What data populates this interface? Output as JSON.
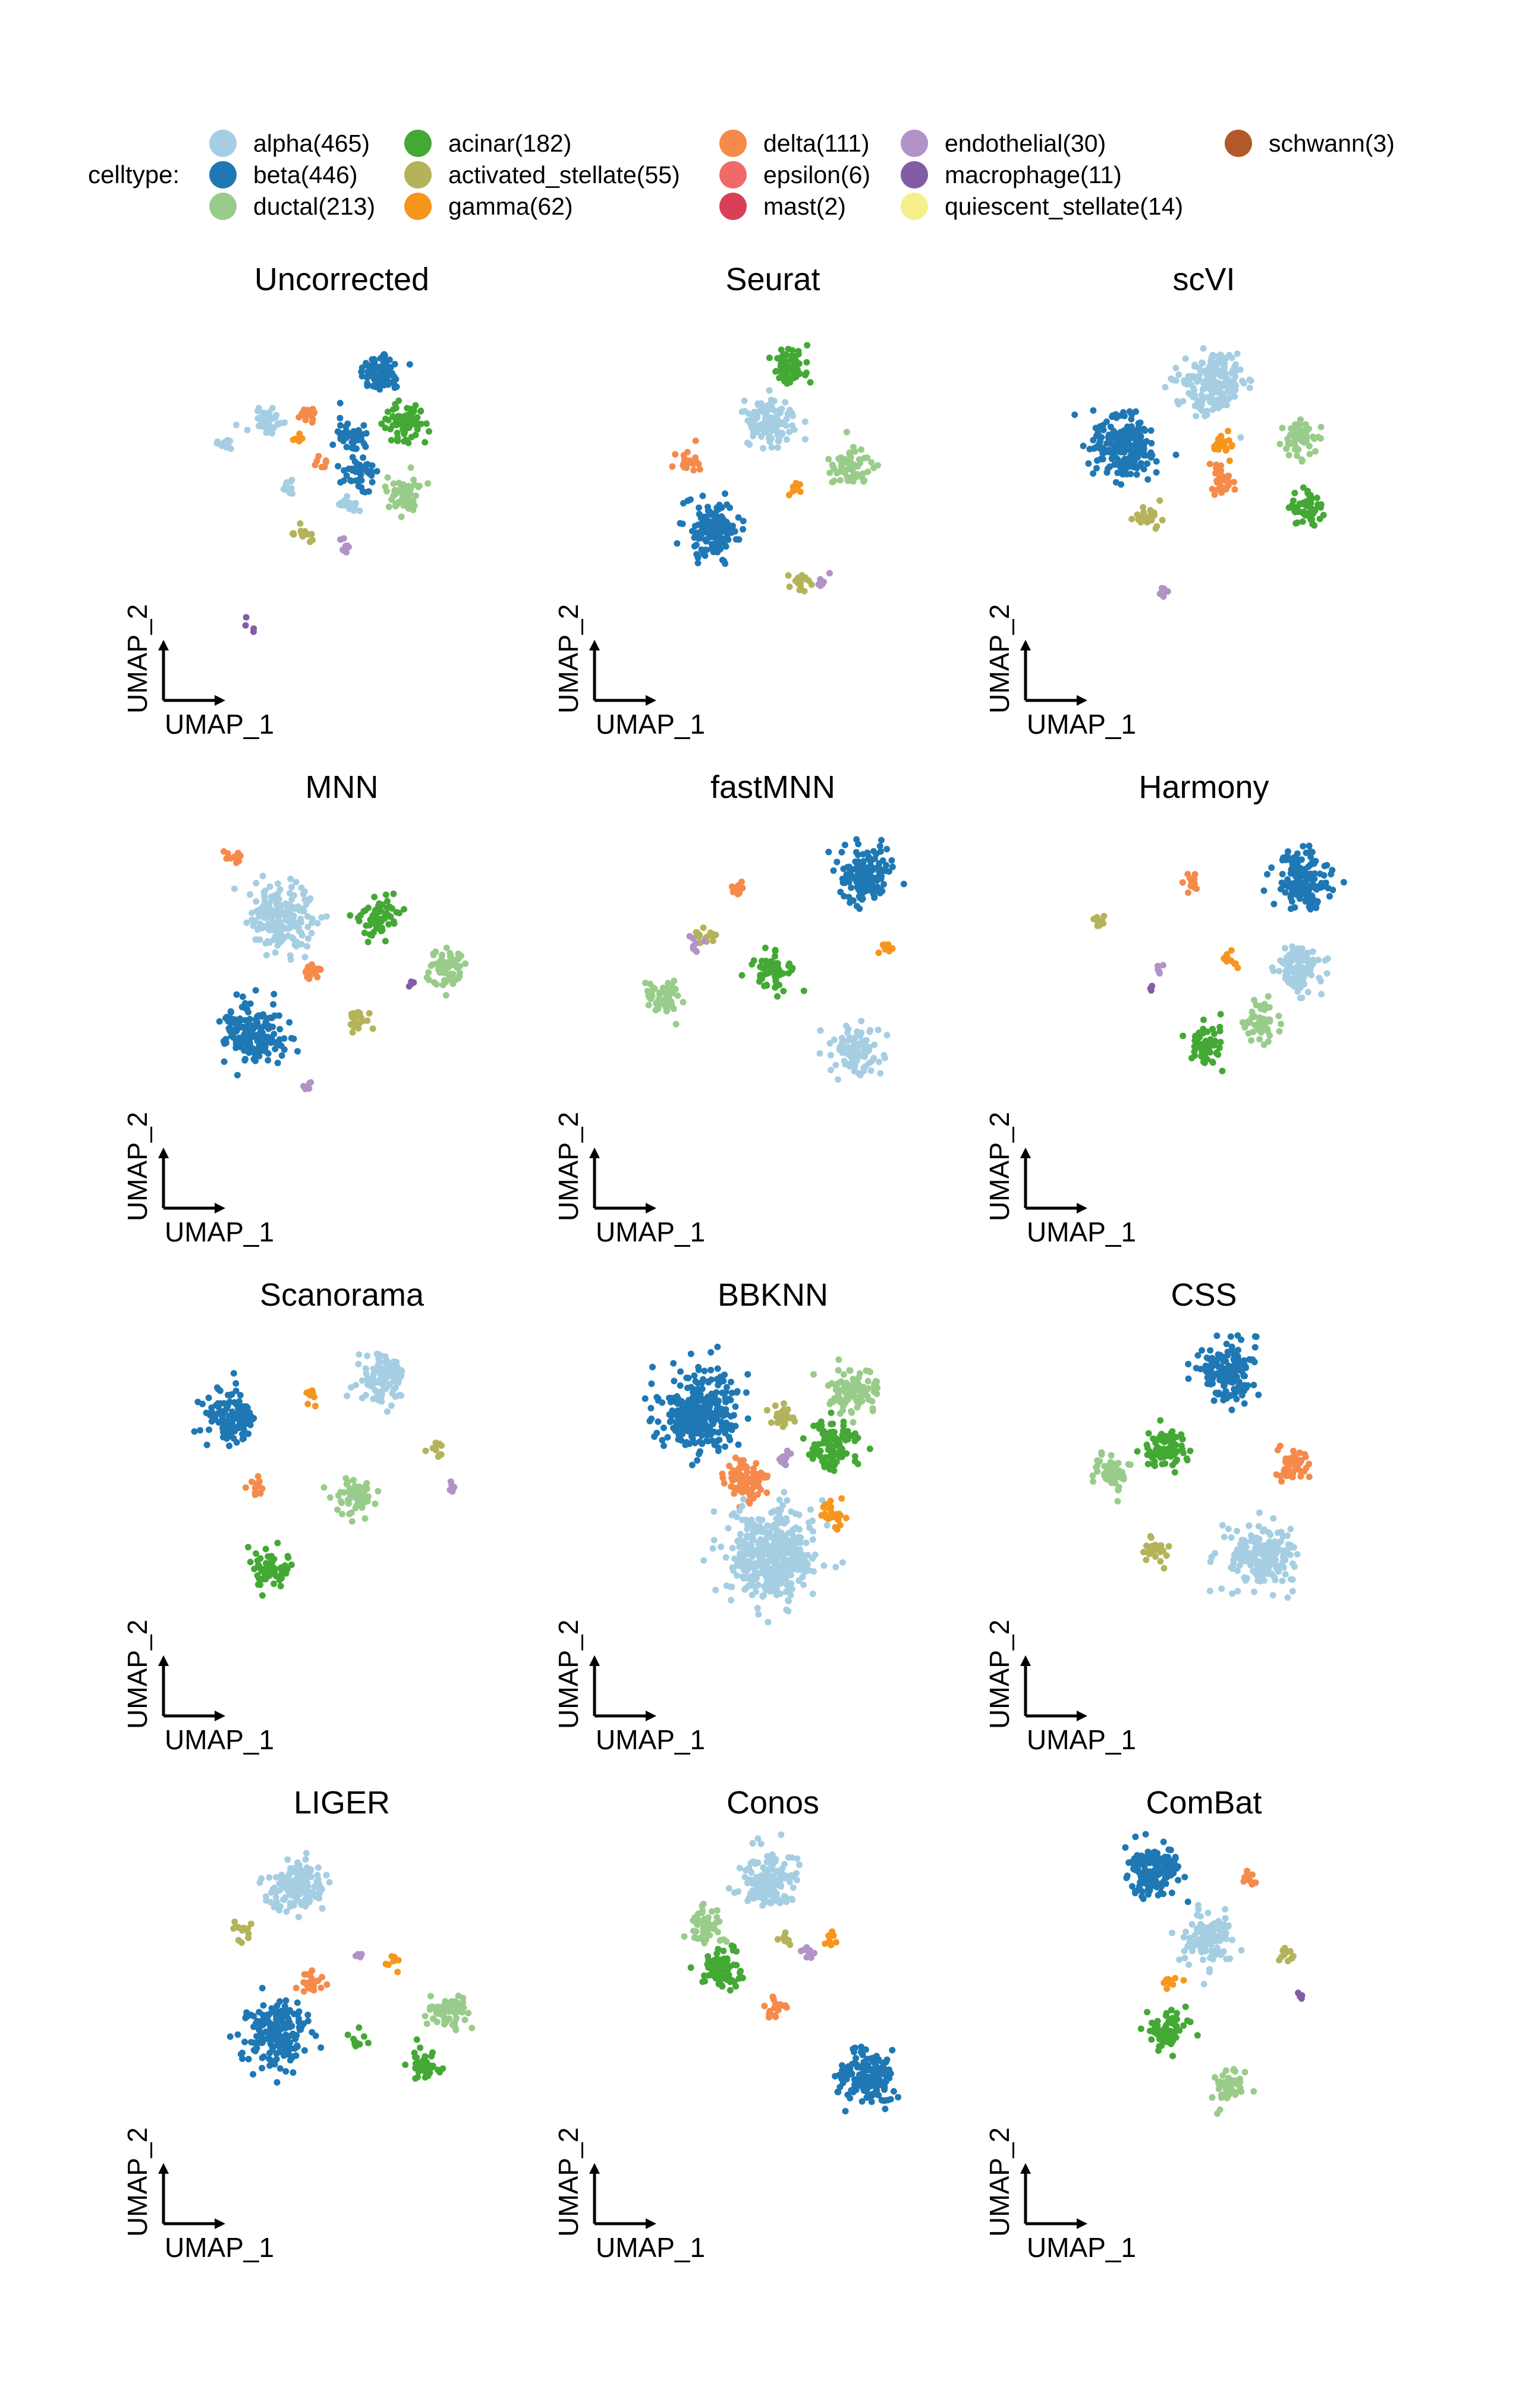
{
  "legend": {
    "title": "celltype:",
    "items": [
      {
        "key": "alpha",
        "label": "alpha(465)",
        "color": "#a6cee3"
      },
      {
        "key": "beta",
        "label": "beta(446)",
        "color": "#1f78b4"
      },
      {
        "key": "ductal",
        "label": "ductal(213)",
        "color": "#99cc8a"
      },
      {
        "key": "acinar",
        "label": "acinar(182)",
        "color": "#44a835"
      },
      {
        "key": "activated_stellate",
        "label": "activated_stellate(55)",
        "color": "#b5b35a"
      },
      {
        "key": "gamma",
        "label": "gamma(62)",
        "color": "#f8951d"
      },
      {
        "key": "delta",
        "label": "delta(111)",
        "color": "#f58a4a"
      },
      {
        "key": "epsilon",
        "label": "epsilon(6)",
        "color": "#f06a6a"
      },
      {
        "key": "mast",
        "label": "mast(2)",
        "color": "#d84058"
      },
      {
        "key": "endothelial",
        "label": "endothelial(30)",
        "color": "#b293c8"
      },
      {
        "key": "macrophage",
        "label": "macrophage(11)",
        "color": "#825da5"
      },
      {
        "key": "quiescent_stellate",
        "label": "quiescent_stellate(14)",
        "color": "#f5f08c"
      },
      {
        "key": "schwann",
        "label": "schwann(3)",
        "color": "#b15928"
      }
    ]
  },
  "axis_labels": {
    "x": "UMAP_1",
    "y": "UMAP_2"
  },
  "chart_data": [
    {
      "type": "scatter",
      "title": "Uncorrected",
      "clusters": [
        {
          "celltype": "beta",
          "x": 0.22,
          "y": 0.82,
          "count": 80
        },
        {
          "celltype": "alpha",
          "x": -0.42,
          "y": 0.56,
          "count": 40
        },
        {
          "celltype": "alpha",
          "x": -0.66,
          "y": 0.45,
          "count": 12
        },
        {
          "celltype": "alpha",
          "x": -0.3,
          "y": 0.21,
          "count": 12
        },
        {
          "celltype": "delta",
          "x": -0.18,
          "y": 0.59,
          "count": 15
        },
        {
          "celltype": "delta",
          "x": -0.12,
          "y": 0.35,
          "count": 8
        },
        {
          "celltype": "gamma",
          "x": -0.24,
          "y": 0.47,
          "count": 6
        },
        {
          "celltype": "beta",
          "x": 0.06,
          "y": 0.48,
          "count": 45
        },
        {
          "celltype": "beta",
          "x": 0.09,
          "y": 0.29,
          "count": 45
        },
        {
          "celltype": "alpha",
          "x": 0.05,
          "y": 0.12,
          "count": 20
        },
        {
          "celltype": "acinar",
          "x": 0.36,
          "y": 0.55,
          "count": 70
        },
        {
          "celltype": "ductal",
          "x": 0.34,
          "y": 0.18,
          "count": 60
        },
        {
          "celltype": "activated_stellate",
          "x": -0.21,
          "y": -0.04,
          "count": 16
        },
        {
          "celltype": "endothelial",
          "x": 0.02,
          "y": -0.09,
          "count": 8
        },
        {
          "celltype": "macrophage",
          "x": -0.52,
          "y": -0.51,
          "count": 4
        }
      ]
    },
    {
      "type": "scatter",
      "title": "Seurat",
      "clusters": [
        {
          "celltype": "acinar",
          "x": 0.1,
          "y": 0.86,
          "count": 60
        },
        {
          "celltype": "alpha",
          "x": -0.02,
          "y": 0.55,
          "count": 110
        },
        {
          "celltype": "ductal",
          "x": 0.44,
          "y": 0.32,
          "count": 60
        },
        {
          "celltype": "delta",
          "x": -0.48,
          "y": 0.36,
          "count": 25
        },
        {
          "celltype": "beta",
          "x": -0.34,
          "y": -0.01,
          "count": 150
        },
        {
          "celltype": "gamma",
          "x": 0.13,
          "y": 0.2,
          "count": 10
        },
        {
          "celltype": "activated_stellate",
          "x": 0.15,
          "y": -0.28,
          "count": 18
        },
        {
          "celltype": "endothelial",
          "x": 0.29,
          "y": -0.28,
          "count": 8
        }
      ]
    },
    {
      "type": "scatter",
      "title": "scVI",
      "clusters": [
        {
          "celltype": "alpha",
          "x": 0.06,
          "y": 0.76,
          "count": 200
        },
        {
          "celltype": "beta",
          "x": -0.44,
          "y": 0.42,
          "count": 200
        },
        {
          "celltype": "gamma",
          "x": 0.11,
          "y": 0.43,
          "count": 20
        },
        {
          "celltype": "delta",
          "x": 0.1,
          "y": 0.25,
          "count": 30
        },
        {
          "celltype": "ductal",
          "x": 0.54,
          "y": 0.47,
          "count": 60
        },
        {
          "celltype": "acinar",
          "x": 0.58,
          "y": 0.1,
          "count": 60
        },
        {
          "celltype": "activated_stellate",
          "x": -0.32,
          "y": 0.05,
          "count": 25
        },
        {
          "celltype": "endothelial",
          "x": -0.23,
          "y": -0.33,
          "count": 8
        }
      ]
    },
    {
      "type": "scatter",
      "title": "MNN",
      "clusters": [
        {
          "celltype": "alpha",
          "x": -0.34,
          "y": 0.62,
          "count": 200
        },
        {
          "celltype": "delta",
          "x": -0.62,
          "y": 0.93,
          "count": 10
        },
        {
          "celltype": "acinar",
          "x": 0.21,
          "y": 0.62,
          "count": 70
        },
        {
          "celltype": "ductal",
          "x": 0.58,
          "y": 0.35,
          "count": 60
        },
        {
          "celltype": "delta",
          "x": -0.17,
          "y": 0.34,
          "count": 20
        },
        {
          "celltype": "beta",
          "x": -0.49,
          "y": 0.01,
          "count": 180
        },
        {
          "celltype": "activated_stellate",
          "x": 0.1,
          "y": 0.07,
          "count": 18
        },
        {
          "celltype": "endothelial",
          "x": -0.2,
          "y": -0.27,
          "count": 8
        },
        {
          "celltype": "macrophage",
          "x": 0.39,
          "y": 0.28,
          "count": 4
        }
      ]
    },
    {
      "type": "scatter",
      "title": "fastMNN",
      "clusters": [
        {
          "celltype": "beta",
          "x": 0.52,
          "y": 0.84,
          "count": 150
        },
        {
          "celltype": "delta",
          "x": -0.2,
          "y": 0.76,
          "count": 12
        },
        {
          "celltype": "activated_stellate",
          "x": -0.38,
          "y": 0.53,
          "count": 15
        },
        {
          "celltype": "endothelial",
          "x": -0.44,
          "y": 0.48,
          "count": 8
        },
        {
          "celltype": "ductal",
          "x": -0.61,
          "y": 0.2,
          "count": 60
        },
        {
          "celltype": "acinar",
          "x": -0.01,
          "y": 0.34,
          "count": 60
        },
        {
          "celltype": "gamma",
          "x": 0.63,
          "y": 0.47,
          "count": 10
        },
        {
          "celltype": "alpha",
          "x": 0.47,
          "y": -0.08,
          "count": 110
        }
      ]
    },
    {
      "type": "scatter",
      "title": "Harmony",
      "clusters": [
        {
          "celltype": "beta",
          "x": 0.55,
          "y": 0.82,
          "count": 150
        },
        {
          "celltype": "delta",
          "x": -0.06,
          "y": 0.8,
          "count": 15
        },
        {
          "celltype": "activated_stellate",
          "x": -0.59,
          "y": 0.6,
          "count": 12
        },
        {
          "celltype": "alpha",
          "x": 0.53,
          "y": 0.36,
          "count": 110
        },
        {
          "celltype": "gamma",
          "x": 0.14,
          "y": 0.4,
          "count": 10
        },
        {
          "celltype": "endothelial",
          "x": -0.25,
          "y": 0.36,
          "count": 5
        },
        {
          "celltype": "macrophage",
          "x": -0.3,
          "y": 0.25,
          "count": 3
        },
        {
          "celltype": "ductal",
          "x": 0.32,
          "y": 0.07,
          "count": 50
        },
        {
          "celltype": "acinar",
          "x": 0.01,
          "y": -0.05,
          "count": 60
        }
      ]
    },
    {
      "type": "scatter",
      "title": "Scanorama",
      "clusters": [
        {
          "celltype": "alpha",
          "x": 0.23,
          "y": 0.88,
          "count": 110
        },
        {
          "celltype": "beta",
          "x": -0.62,
          "y": 0.67,
          "count": 120
        },
        {
          "celltype": "gamma",
          "x": -0.17,
          "y": 0.78,
          "count": 10
        },
        {
          "celltype": "activated_stellate",
          "x": 0.53,
          "y": 0.49,
          "count": 10
        },
        {
          "celltype": "endothelial",
          "x": 0.62,
          "y": 0.3,
          "count": 6
        },
        {
          "celltype": "delta",
          "x": -0.48,
          "y": 0.29,
          "count": 12
        },
        {
          "celltype": "ductal",
          "x": 0.07,
          "y": 0.25,
          "count": 60
        },
        {
          "celltype": "acinar",
          "x": -0.4,
          "y": -0.13,
          "count": 60
        }
      ]
    },
    {
      "type": "scatter",
      "title": "BBKNN",
      "clusters": [
        {
          "celltype": "beta",
          "x": -0.42,
          "y": 0.68,
          "count": 300
        },
        {
          "celltype": "ductal",
          "x": 0.46,
          "y": 0.8,
          "count": 100
        },
        {
          "celltype": "acinar",
          "x": 0.34,
          "y": 0.52,
          "count": 110
        },
        {
          "celltype": "activated_stellate",
          "x": 0.06,
          "y": 0.66,
          "count": 25
        },
        {
          "celltype": "endothelial",
          "x": 0.05,
          "y": 0.46,
          "count": 10
        },
        {
          "celltype": "delta",
          "x": -0.15,
          "y": 0.34,
          "count": 80
        },
        {
          "celltype": "alpha",
          "x": -0.01,
          "y": -0.06,
          "count": 400
        },
        {
          "celltype": "gamma",
          "x": 0.33,
          "y": 0.14,
          "count": 25
        }
      ]
    },
    {
      "type": "scatter",
      "title": "CSS",
      "clusters": [
        {
          "celltype": "beta",
          "x": 0.14,
          "y": 0.89,
          "count": 150
        },
        {
          "celltype": "acinar",
          "x": -0.22,
          "y": 0.5,
          "count": 80
        },
        {
          "celltype": "ductal",
          "x": -0.52,
          "y": 0.38,
          "count": 60
        },
        {
          "celltype": "delta",
          "x": 0.51,
          "y": 0.41,
          "count": 50
        },
        {
          "celltype": "activated_stellate",
          "x": -0.27,
          "y": -0.04,
          "count": 25
        },
        {
          "celltype": "alpha",
          "x": 0.32,
          "y": -0.07,
          "count": 200
        }
      ]
    },
    {
      "type": "scatter",
      "title": "LIGER",
      "clusters": [
        {
          "celltype": "alpha",
          "x": -0.24,
          "y": 0.87,
          "count": 150
        },
        {
          "celltype": "activated_stellate",
          "x": -0.56,
          "y": 0.63,
          "count": 15
        },
        {
          "celltype": "delta",
          "x": -0.17,
          "y": 0.36,
          "count": 25
        },
        {
          "celltype": "endothelial",
          "x": 0.1,
          "y": 0.51,
          "count": 4
        },
        {
          "celltype": "gamma",
          "x": 0.3,
          "y": 0.46,
          "count": 8
        },
        {
          "celltype": "ductal",
          "x": 0.59,
          "y": 0.21,
          "count": 60
        },
        {
          "celltype": "acinar",
          "x": 0.45,
          "y": -0.08,
          "count": 40
        },
        {
          "celltype": "acinar",
          "x": 0.08,
          "y": 0.06,
          "count": 10
        },
        {
          "celltype": "beta",
          "x": -0.38,
          "y": 0.08,
          "count": 200
        }
      ]
    },
    {
      "type": "scatter",
      "title": "Conos",
      "clusters": [
        {
          "celltype": "alpha",
          "x": -0.03,
          "y": 0.89,
          "count": 150
        },
        {
          "celltype": "ductal",
          "x": -0.37,
          "y": 0.66,
          "count": 60
        },
        {
          "celltype": "acinar",
          "x": -0.29,
          "y": 0.43,
          "count": 80
        },
        {
          "celltype": "activated_stellate",
          "x": 0.07,
          "y": 0.59,
          "count": 12
        },
        {
          "celltype": "endothelial",
          "x": 0.2,
          "y": 0.53,
          "count": 8
        },
        {
          "celltype": "gamma",
          "x": 0.33,
          "y": 0.6,
          "count": 8
        },
        {
          "celltype": "delta",
          "x": 0.02,
          "y": 0.23,
          "count": 20
        },
        {
          "celltype": "beta",
          "x": 0.52,
          "y": -0.13,
          "count": 150
        }
      ]
    },
    {
      "type": "scatter",
      "title": "ComBat",
      "clusters": [
        {
          "celltype": "beta",
          "x": -0.27,
          "y": 0.94,
          "count": 150
        },
        {
          "celltype": "delta",
          "x": 0.25,
          "y": 0.91,
          "count": 12
        },
        {
          "celltype": "alpha",
          "x": 0.03,
          "y": 0.6,
          "count": 120
        },
        {
          "celltype": "activated_stellate",
          "x": 0.46,
          "y": 0.51,
          "count": 12
        },
        {
          "celltype": "macrophage",
          "x": 0.55,
          "y": 0.3,
          "count": 4
        },
        {
          "celltype": "gamma",
          "x": -0.19,
          "y": 0.37,
          "count": 10
        },
        {
          "celltype": "acinar",
          "x": -0.21,
          "y": 0.11,
          "count": 70
        },
        {
          "celltype": "ductal",
          "x": 0.13,
          "y": -0.18,
          "count": 50
        }
      ]
    }
  ]
}
